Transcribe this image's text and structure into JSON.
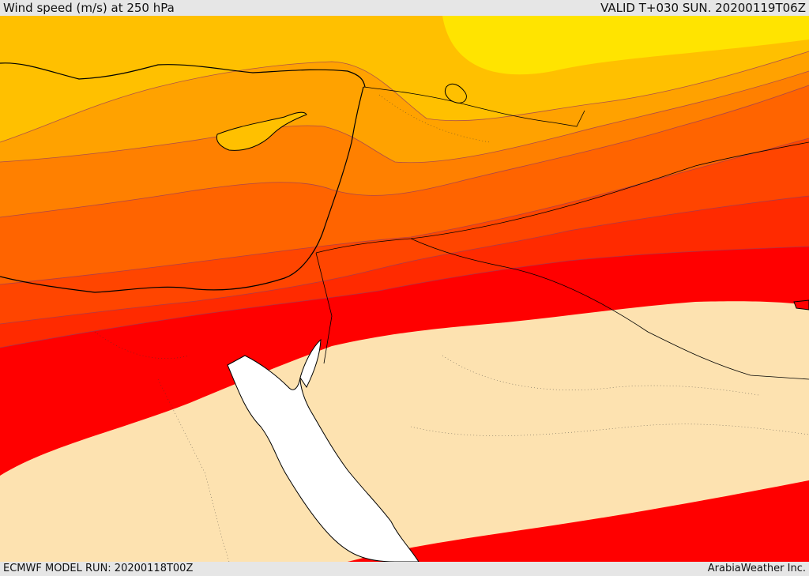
{
  "header": {
    "title": "Wind speed (m/s) at 250 hPa",
    "valid": "VALID T+030 SUN. 20200119T06Z"
  },
  "footer": {
    "model_run": "ECMWF MODEL RUN: 20200118T00Z",
    "credit": "ArabiaWeather Inc."
  },
  "colors": {
    "band_weak": "#fde2b0",
    "band_1": "#ff0000",
    "band_2": "#ff2a00",
    "band_3": "#ff4500",
    "band_4": "#ff6400",
    "band_5": "#ff8000",
    "band_6": "#ffa200",
    "band_7": "#ffc000",
    "band_8": "#ffe400",
    "sea": "#ffffff"
  }
}
